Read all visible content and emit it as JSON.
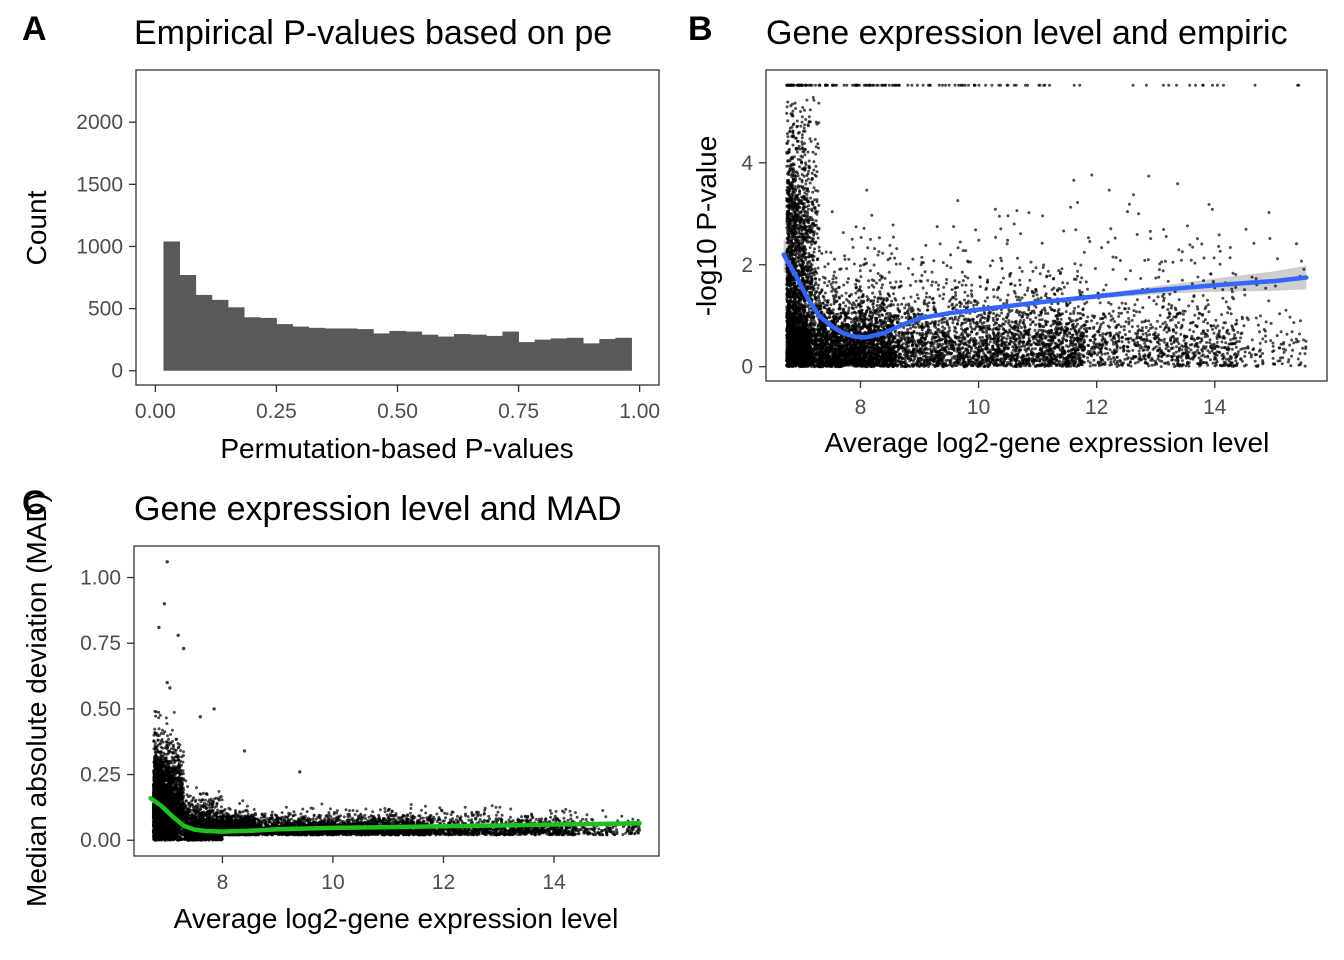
{
  "figure": {
    "panels": [
      {
        "letter": "A"
      },
      {
        "letter": "B"
      },
      {
        "letter": "C"
      }
    ]
  },
  "chart_data": [
    {
      "type": "bar",
      "title": "Empirical P-values based on pe",
      "xlabel": "Permutation-based P-values",
      "ylabel": "Count",
      "xlim": [
        -0.04,
        1.04
      ],
      "ylim": [
        -115,
        2420
      ],
      "xticks": [
        0,
        0.25,
        0.5,
        0.75,
        1
      ],
      "xtick_labels": [
        "0.00",
        "0.25",
        "0.50",
        "0.75",
        "1.00"
      ],
      "yticks": [
        0,
        500,
        1000,
        1500,
        2000
      ],
      "ytick_labels": [
        "0",
        "500",
        "1000",
        "1500",
        "2000"
      ],
      "bar_color": "#595959",
      "bin_width": 0.0333,
      "bin_starts": [
        0.0167,
        0.05,
        0.0833,
        0.1167,
        0.15,
        0.1833,
        0.2167,
        0.25,
        0.2833,
        0.3167,
        0.35,
        0.3833,
        0.4167,
        0.45,
        0.4833,
        0.5167,
        0.55,
        0.5833,
        0.6167,
        0.65,
        0.6833,
        0.7167,
        0.75,
        0.7833,
        0.8167,
        0.85,
        0.8833,
        0.9167,
        0.95
      ],
      "values": [
        1040,
        770,
        610,
        570,
        510,
        430,
        425,
        375,
        355,
        345,
        340,
        340,
        335,
        300,
        320,
        315,
        290,
        275,
        295,
        290,
        280,
        315,
        230,
        250,
        260,
        265,
        220,
        255,
        265
      ],
      "grid": false,
      "legend": "none"
    },
    {
      "type": "scatter",
      "title": "Gene expression level and empiric",
      "xlabel": "Average log2-gene expression level",
      "ylabel": "-log10 P-value",
      "xlim": [
        6.4,
        15.9
      ],
      "ylim": [
        -0.28,
        5.82
      ],
      "xticks": [
        8,
        10,
        12,
        14
      ],
      "xtick_labels": [
        "8",
        "10",
        "12",
        "14"
      ],
      "yticks": [
        0,
        2,
        4
      ],
      "ytick_labels": [
        "0",
        "2",
        "4"
      ],
      "point_color": "#000000",
      "point_count": 9000,
      "cap_value": 5.52,
      "smooth": {
        "color": "#3366ff",
        "band_color": "#bdbdbd",
        "x": [
          6.7,
          6.9,
          7.1,
          7.3,
          7.5,
          7.7,
          7.9,
          8.1,
          8.4,
          8.7,
          9.0,
          9.5,
          10.0,
          10.5,
          11.0,
          11.5,
          12.0,
          12.5,
          13.0,
          13.5,
          14.0,
          14.5,
          15.0,
          15.55
        ],
        "y": [
          2.2,
          1.8,
          1.35,
          1.0,
          0.8,
          0.66,
          0.59,
          0.58,
          0.66,
          0.82,
          0.95,
          1.05,
          1.12,
          1.19,
          1.26,
          1.32,
          1.38,
          1.44,
          1.5,
          1.55,
          1.6,
          1.64,
          1.68,
          1.75
        ],
        "band_halfwidth": [
          0.33,
          0.14,
          0.06,
          0.04,
          0.03,
          0.03,
          0.03,
          0.03,
          0.03,
          0.03,
          0.03,
          0.03,
          0.03,
          0.04,
          0.04,
          0.04,
          0.05,
          0.06,
          0.08,
          0.1,
          0.13,
          0.16,
          0.19,
          0.23
        ]
      },
      "grid": false,
      "legend": "none"
    },
    {
      "type": "scatter",
      "title": "Gene expression level and MAD",
      "xlabel": "Average log2-gene expression level",
      "ylabel": "Median absolute deviation (MAD)",
      "xlim": [
        6.4,
        15.9
      ],
      "ylim": [
        -0.06,
        1.12
      ],
      "xticks": [
        8,
        10,
        12,
        14
      ],
      "xtick_labels": [
        "8",
        "10",
        "12",
        "14"
      ],
      "yticks": [
        0,
        0.25,
        0.5,
        0.75,
        1.0
      ],
      "ytick_labels": [
        "0.00",
        "0.25",
        "0.50",
        "0.75",
        "1.00"
      ],
      "point_color": "#000000",
      "point_count": 9000,
      "outliers": [
        {
          "x": 7.0,
          "y": 1.06
        },
        {
          "x": 6.95,
          "y": 0.9
        },
        {
          "x": 6.85,
          "y": 0.81
        },
        {
          "x": 7.2,
          "y": 0.78
        },
        {
          "x": 7.3,
          "y": 0.73
        },
        {
          "x": 7.0,
          "y": 0.6
        },
        {
          "x": 7.05,
          "y": 0.58
        },
        {
          "x": 7.85,
          "y": 0.5
        },
        {
          "x": 8.4,
          "y": 0.34
        },
        {
          "x": 9.4,
          "y": 0.26
        },
        {
          "x": 7.6,
          "y": 0.47
        }
      ],
      "smooth": {
        "color": "#1fbf1f",
        "x": [
          6.7,
          6.9,
          7.1,
          7.3,
          7.5,
          7.7,
          8.0,
          8.5,
          9.0,
          10.0,
          11.0,
          12.0,
          13.0,
          14.0,
          15.0,
          15.55
        ],
        "y": [
          0.16,
          0.13,
          0.09,
          0.055,
          0.04,
          0.035,
          0.033,
          0.036,
          0.042,
          0.047,
          0.05,
          0.053,
          0.056,
          0.06,
          0.063,
          0.065
        ]
      },
      "grid": false,
      "legend": "none"
    }
  ]
}
